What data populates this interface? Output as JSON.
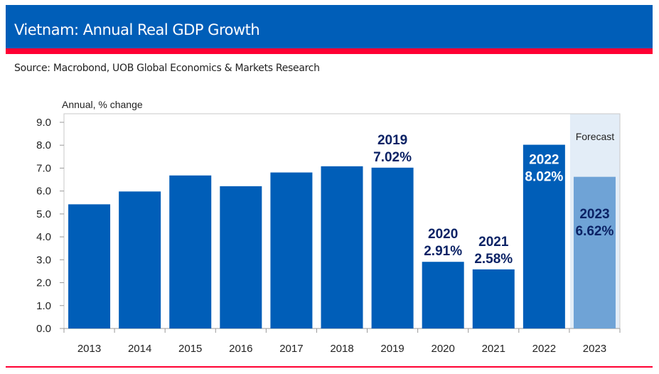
{
  "header": {
    "title": "Vietnam: Annual Real GDP Growth",
    "source": "Source: Macrobond, UOB Global Economics & Markets Research"
  },
  "colors": {
    "header_blue": "#005eb8",
    "accent_red": "#ff0033",
    "bar": "#005eb8",
    "forecast_bar": "#6fa3d6",
    "forecast_bg": "#e3edf7",
    "label_navy": "#0b2265"
  },
  "chart_data": {
    "type": "bar",
    "title": "Vietnam: Annual Real GDP Growth",
    "ylabel": "Annual, % change",
    "ylim": [
      0,
      9
    ],
    "yticks": [
      "0.0",
      "1.0",
      "2.0",
      "3.0",
      "4.0",
      "5.0",
      "6.0",
      "7.0",
      "8.0",
      "9.0"
    ],
    "categories": [
      "2013",
      "2014",
      "2015",
      "2016",
      "2017",
      "2018",
      "2019",
      "2020",
      "2021",
      "2022",
      "2023"
    ],
    "values": [
      5.42,
      5.98,
      6.68,
      6.21,
      6.81,
      7.08,
      7.02,
      2.91,
      2.58,
      8.02,
      6.62
    ],
    "forecast_region_label": "Forecast",
    "forecast_categories": [
      "2023"
    ],
    "annotations": [
      {
        "category": "2019",
        "year": "2019",
        "value": "7.02%"
      },
      {
        "category": "2020",
        "year": "2020",
        "value": "2.91%"
      },
      {
        "category": "2021",
        "year": "2021",
        "value": "2.58%"
      },
      {
        "category": "2022",
        "year": "2022",
        "value": "8.02%"
      },
      {
        "category": "2023",
        "year": "2023",
        "value": "6.62%"
      }
    ],
    "grid": false
  }
}
